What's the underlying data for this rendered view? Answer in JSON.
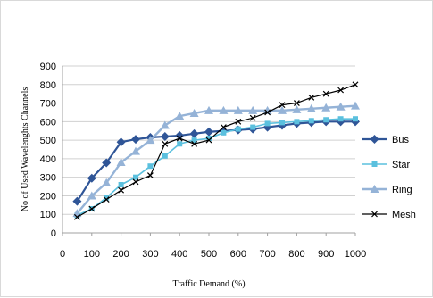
{
  "chart_data": {
    "type": "line",
    "title": "",
    "xlabel": "Traffic Demand (%)",
    "ylabel": "No of  Used Wavelenghts Channels",
    "xlim": [
      0,
      1000
    ],
    "ylim": [
      0,
      900
    ],
    "x_ticks": [
      "0",
      "100",
      "200",
      "300",
      "400",
      "500",
      "600",
      "700",
      "800",
      "900",
      "1000"
    ],
    "y_ticks": [
      "0",
      "100",
      "200",
      "300",
      "400",
      "500",
      "600",
      "700",
      "800",
      "900"
    ],
    "grid": "horizontal",
    "legend_position": "right",
    "x": [
      50,
      100,
      150,
      200,
      250,
      300,
      350,
      400,
      450,
      500,
      550,
      600,
      650,
      700,
      750,
      800,
      850,
      900,
      950,
      1000
    ],
    "series": [
      {
        "name": "Bus",
        "color": "#2f5597",
        "marker": "diamond",
        "values": [
          170,
          295,
          378,
          490,
          505,
          515,
          520,
          525,
          535,
          545,
          550,
          555,
          560,
          570,
          580,
          590,
          595,
          600,
          600,
          600
        ]
      },
      {
        "name": "Star",
        "color": "#5bc0de",
        "marker": "square",
        "values": [
          95,
          130,
          190,
          260,
          300,
          360,
          415,
          480,
          500,
          510,
          540,
          560,
          570,
          590,
          595,
          600,
          605,
          610,
          615,
          615
        ]
      },
      {
        "name": "Ring",
        "color": "#95b3d7",
        "marker": "triangle",
        "values": [
          105,
          200,
          270,
          380,
          440,
          500,
          580,
          630,
          645,
          660,
          660,
          660,
          660,
          660,
          660,
          665,
          670,
          675,
          680,
          685
        ]
      },
      {
        "name": "Mesh",
        "color": "#000000",
        "marker": "x",
        "values": [
          85,
          130,
          180,
          230,
          275,
          310,
          480,
          510,
          480,
          500,
          570,
          600,
          620,
          650,
          690,
          700,
          730,
          750,
          770,
          800
        ]
      }
    ]
  }
}
